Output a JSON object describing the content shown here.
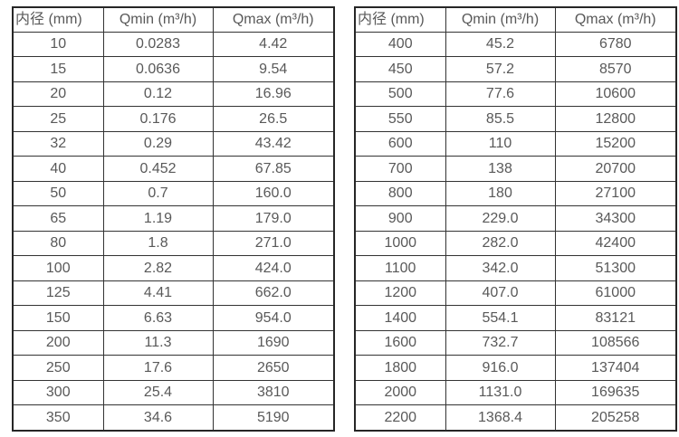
{
  "page": {
    "background_color": "#ffffff",
    "border_color": "#333333",
    "outer_border_color": "#262626",
    "text_color": "#595959"
  },
  "tables": [
    {
      "headers": [
        "内径 (mm)",
        "Qmin (m³/h)",
        "Qmax (m³/h)"
      ],
      "rows": [
        [
          "10",
          "0.0283",
          "4.42"
        ],
        [
          "15",
          "0.0636",
          "9.54"
        ],
        [
          "20",
          "0.12",
          "16.96"
        ],
        [
          "25",
          "0.176",
          "26.5"
        ],
        [
          "32",
          "0.29",
          "43.42"
        ],
        [
          "40",
          "0.452",
          "67.85"
        ],
        [
          "50",
          "0.7",
          "160.0"
        ],
        [
          "65",
          "1.19",
          "179.0"
        ],
        [
          "80",
          "1.8",
          "271.0"
        ],
        [
          "100",
          "2.82",
          "424.0"
        ],
        [
          "125",
          "4.41",
          "662.0"
        ],
        [
          "150",
          "6.63",
          "954.0"
        ],
        [
          "200",
          "11.3",
          "1690"
        ],
        [
          "250",
          "17.6",
          "2650"
        ],
        [
          "300",
          "25.4",
          "3810"
        ],
        [
          "350",
          "34.6",
          "5190"
        ]
      ]
    },
    {
      "headers": [
        "内径 (mm)",
        "Qmin (m³/h)",
        "Qmax (m³/h)"
      ],
      "rows": [
        [
          "400",
          "45.2",
          "6780"
        ],
        [
          "450",
          "57.2",
          "8570"
        ],
        [
          "500",
          "77.6",
          "10600"
        ],
        [
          "550",
          "85.5",
          "12800"
        ],
        [
          "600",
          "110",
          "15200"
        ],
        [
          "700",
          "138",
          "20700"
        ],
        [
          "800",
          "180",
          "27100"
        ],
        [
          "900",
          "229.0",
          "34300"
        ],
        [
          "1000",
          "282.0",
          "42400"
        ],
        [
          "1100",
          "342.0",
          "51300"
        ],
        [
          "1200",
          "407.0",
          "61000"
        ],
        [
          "1400",
          "554.1",
          "83121"
        ],
        [
          "1600",
          "732.7",
          "108566"
        ],
        [
          "1800",
          "916.0",
          "137404"
        ],
        [
          "2000",
          "1131.0",
          "169635"
        ],
        [
          "2200",
          "1368.4",
          "205258"
        ]
      ]
    }
  ],
  "chart_data": [
    {
      "type": "table",
      "title": "",
      "columns": [
        "内径 (mm)",
        "Qmin (m³/h)",
        "Qmax (m³/h)"
      ],
      "rows": [
        [
          10,
          0.0283,
          4.42
        ],
        [
          15,
          0.0636,
          9.54
        ],
        [
          20,
          0.12,
          16.96
        ],
        [
          25,
          0.176,
          26.5
        ],
        [
          32,
          0.29,
          43.42
        ],
        [
          40,
          0.452,
          67.85
        ],
        [
          50,
          0.7,
          160.0
        ],
        [
          65,
          1.19,
          179.0
        ],
        [
          80,
          1.8,
          271.0
        ],
        [
          100,
          2.82,
          424.0
        ],
        [
          125,
          4.41,
          662.0
        ],
        [
          150,
          6.63,
          954.0
        ],
        [
          200,
          11.3,
          1690
        ],
        [
          250,
          17.6,
          2650
        ],
        [
          300,
          25.4,
          3810
        ],
        [
          350,
          34.6,
          5190
        ]
      ]
    },
    {
      "type": "table",
      "title": "",
      "columns": [
        "内径 (mm)",
        "Qmin (m³/h)",
        "Qmax (m³/h)"
      ],
      "rows": [
        [
          400,
          45.2,
          6780
        ],
        [
          450,
          57.2,
          8570
        ],
        [
          500,
          77.6,
          10600
        ],
        [
          550,
          85.5,
          12800
        ],
        [
          600,
          110,
          15200
        ],
        [
          700,
          138,
          20700
        ],
        [
          800,
          180,
          27100
        ],
        [
          900,
          229.0,
          34300
        ],
        [
          1000,
          282.0,
          42400
        ],
        [
          1100,
          342.0,
          51300
        ],
        [
          1200,
          407.0,
          61000
        ],
        [
          1400,
          554.1,
          83121
        ],
        [
          1600,
          732.7,
          108566
        ],
        [
          1800,
          916.0,
          137404
        ],
        [
          2000,
          1131.0,
          169635
        ],
        [
          2200,
          1368.4,
          205258
        ]
      ]
    }
  ]
}
